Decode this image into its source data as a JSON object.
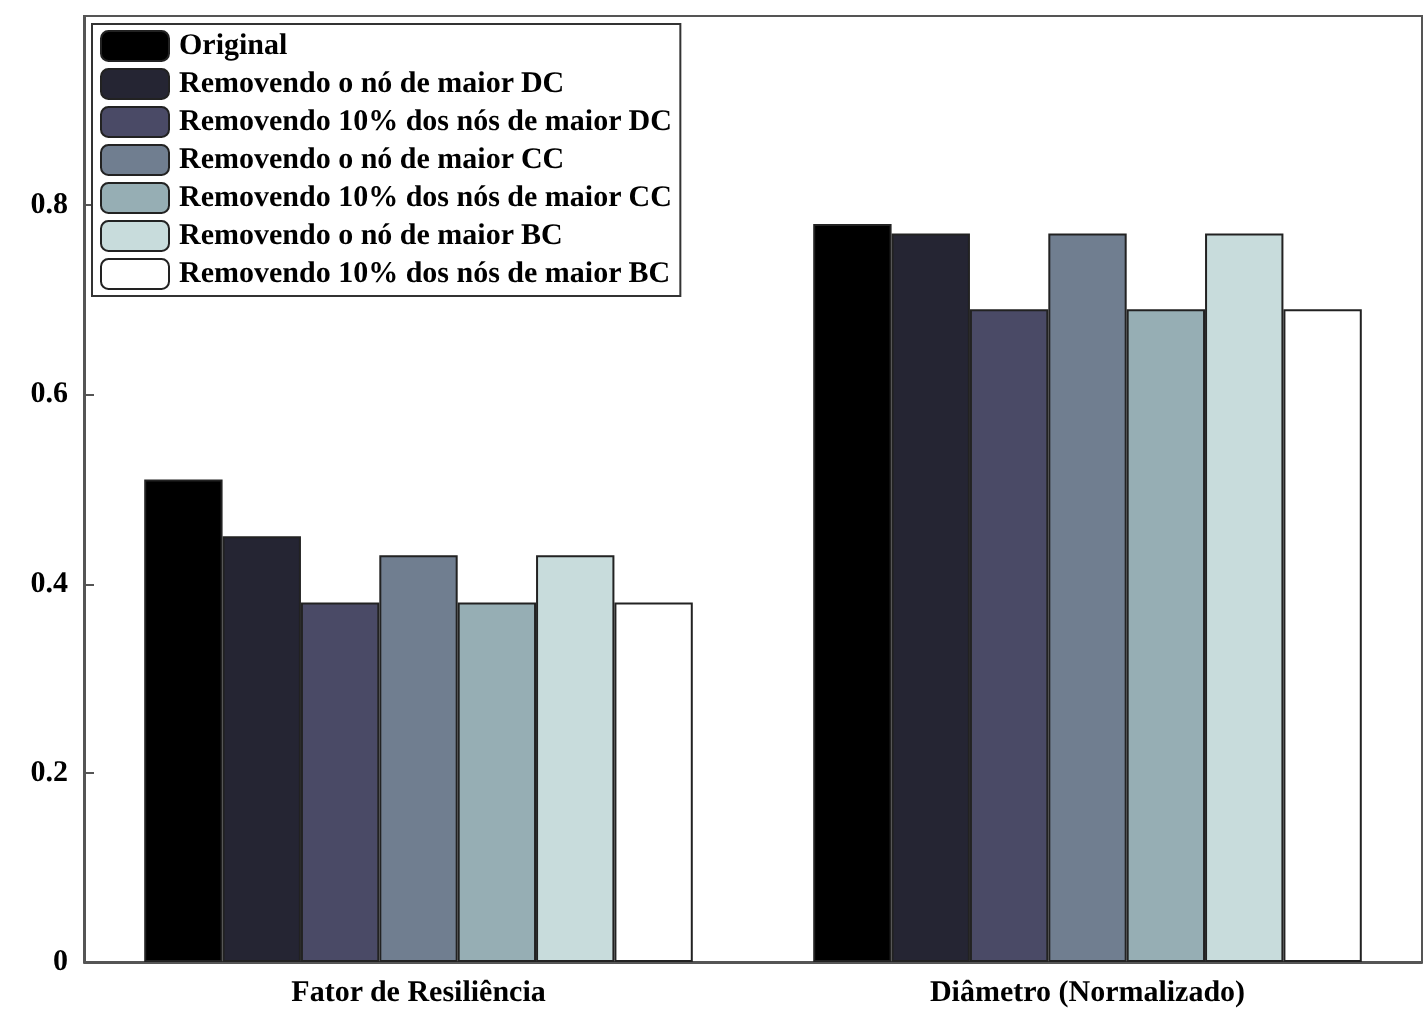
{
  "chart_data": {
    "type": "bar",
    "categories": [
      "Fator de Resiliência",
      "Diâmetro (Normalizado)"
    ],
    "series": [
      {
        "name": "Original",
        "color": "#000000",
        "values": [
          0.51,
          0.78
        ]
      },
      {
        "name": "Removendo o nó de maior DC",
        "color": "#252533",
        "values": [
          0.45,
          0.77
        ]
      },
      {
        "name": "Removendo 10% dos nós de maior DC",
        "color": "#4a4a66",
        "values": [
          0.38,
          0.69
        ]
      },
      {
        "name": "Removendo o nó de maior CC",
        "color": "#707e90",
        "values": [
          0.43,
          0.77
        ]
      },
      {
        "name": "Removendo 10% dos nós de maior CC",
        "color": "#96aeb4",
        "values": [
          0.38,
          0.69
        ]
      },
      {
        "name": "Removendo o nó de maior BC",
        "color": "#c8dcdc",
        "values": [
          0.43,
          0.77
        ]
      },
      {
        "name": "Removendo 10% dos nós de maior BC",
        "color": "#ffffff",
        "values": [
          0.38,
          0.69
        ]
      }
    ],
    "ylim": [
      0,
      1
    ],
    "yticks": [
      0,
      0.2,
      0.4,
      0.6,
      0.8
    ],
    "grid": false,
    "legend": "top left"
  }
}
